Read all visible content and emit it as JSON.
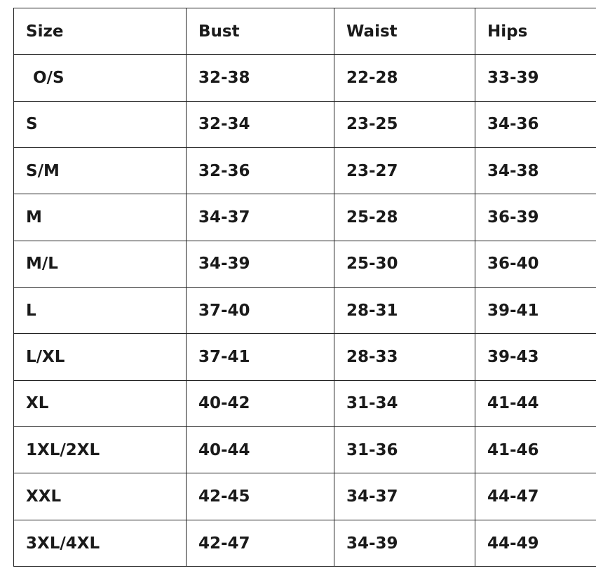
{
  "table": {
    "header": [
      "Size",
      "Bust",
      "Waist",
      "Hips"
    ],
    "rows": [
      [
        "O/S",
        "32-38",
        "22-28",
        "33-39"
      ],
      [
        "S",
        "32-34",
        "23-25",
        "34-36"
      ],
      [
        "S/M",
        "32-36",
        "23-27",
        "34-38"
      ],
      [
        "M",
        "34-37",
        "25-28",
        "36-39"
      ],
      [
        "M/L",
        "34-39",
        "25-30",
        "36-40"
      ],
      [
        "L",
        "37-40",
        "28-31",
        "39-41"
      ],
      [
        "L/XL",
        "37-41",
        "28-33",
        "39-43"
      ],
      [
        "XL",
        "40-42",
        "31-34",
        "41-44"
      ],
      [
        "1XL/2XL",
        "40-44",
        "31-36",
        "41-46"
      ],
      [
        "XXL",
        "42-45",
        "34-37",
        "44-47"
      ],
      [
        "3XL/4XL",
        "42-47",
        "34-39",
        "44-49"
      ]
    ]
  }
}
